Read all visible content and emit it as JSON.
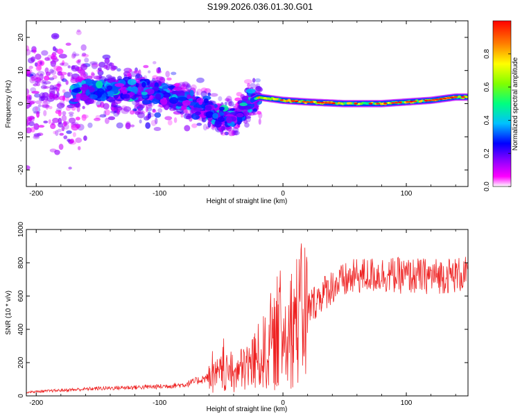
{
  "title": "S199.2026.036.01.30.G01",
  "chart_data": [
    {
      "type": "heatmap",
      "xlabel": "Height of straight line (km)",
      "ylabel": "Frequency (Hz)",
      "xlim": [
        -208,
        150
      ],
      "ylim": [
        -25,
        25
      ],
      "xticks": [
        -200,
        -100,
        0,
        100
      ],
      "yticks": [
        -20,
        -10,
        0,
        10,
        20
      ],
      "colorbar": {
        "label": "Normalized spectral amplitude",
        "range": [
          0,
          1
        ],
        "ticks": [
          "0.0",
          "0.2",
          "0.4",
          "0.6",
          "0.8"
        ],
        "colors": [
          "#ffffff",
          "#ff00ff",
          "#8800ff",
          "#0000ff",
          "#00c0ff",
          "#00ff80",
          "#80ff00",
          "#ffff00",
          "#ff8000",
          "#ff0000"
        ]
      },
      "ridge": {
        "x": [
          -208,
          -180,
          -150,
          -120,
          -100,
          -80,
          -60,
          -50,
          -40,
          -35,
          -30,
          -25,
          -20,
          -10,
          0,
          20,
          50,
          80,
          100,
          120,
          140,
          150
        ],
        "y": [
          3,
          3,
          4,
          4,
          3,
          1,
          -2,
          -4,
          -4,
          -3,
          -1,
          1,
          2,
          1.5,
          1,
          0.5,
          0,
          0,
          0.5,
          1,
          2,
          2
        ]
      }
    },
    {
      "type": "line",
      "xlabel": "Height of straight line (km)",
      "ylabel": "SNR (10 * v/v)",
      "xlim": [
        -208,
        150
      ],
      "ylim": [
        0,
        1000
      ],
      "xticks": [
        -200,
        -100,
        0,
        100
      ],
      "yticks": [
        0,
        200,
        400,
        600,
        800,
        1000
      ],
      "color": "#ee2222",
      "trend": {
        "x": [
          -208,
          -150,
          -100,
          -80,
          -60,
          -50,
          -40,
          -30,
          -20,
          -10,
          0,
          10,
          20,
          30,
          40,
          60,
          80,
          100,
          120,
          150
        ],
        "y": [
          20,
          40,
          50,
          60,
          100,
          130,
          130,
          170,
          230,
          290,
          370,
          450,
          520,
          600,
          660,
          720,
          730,
          720,
          720,
          730
        ]
      }
    }
  ]
}
